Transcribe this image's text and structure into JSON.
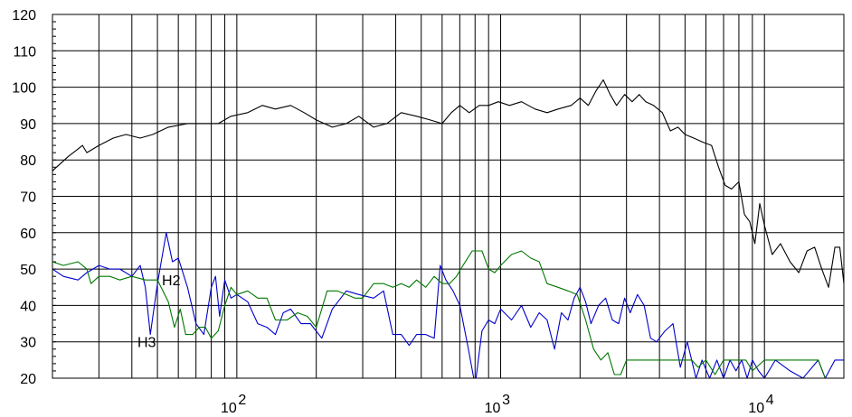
{
  "chart_data": {
    "type": "line",
    "title": "",
    "xlabel": "",
    "ylabel": "",
    "x_scale": "log",
    "xlim": [
      20,
      20000
    ],
    "ylim": [
      20,
      120
    ],
    "grid": true,
    "y_ticks": [
      120,
      110,
      100,
      90,
      80,
      70,
      60,
      50,
      40,
      30,
      20
    ],
    "y_tick_labels": [
      "120",
      "110",
      "100",
      "90",
      "80",
      "70",
      "60",
      "50",
      "40",
      "30",
      "20"
    ],
    "x_ticks": [
      {
        "base": "10",
        "exp": "2",
        "value": 100
      },
      {
        "base": "10",
        "exp": "3",
        "value": 1000
      },
      {
        "base": "10",
        "exp": "4",
        "value": 10000
      }
    ],
    "annotations": [
      {
        "text": "H2",
        "x": 52,
        "y": 47
      },
      {
        "text": "H3",
        "x": 42,
        "y": 30
      }
    ],
    "series": [
      {
        "color": "#000000",
        "points": [
          [
            20,
            77
          ],
          [
            23,
            81
          ],
          [
            25,
            83
          ],
          [
            26,
            84
          ],
          [
            27,
            82
          ],
          [
            30,
            84
          ],
          [
            34,
            86
          ],
          [
            38,
            87
          ],
          [
            43,
            86
          ],
          [
            48,
            87
          ],
          [
            55,
            89
          ],
          [
            65,
            90
          ],
          [
            75,
            90
          ],
          [
            85,
            90
          ],
          [
            95,
            92
          ],
          [
            110,
            93
          ],
          [
            125,
            95
          ],
          [
            140,
            94
          ],
          [
            160,
            95
          ],
          [
            180,
            93
          ],
          [
            200,
            91
          ],
          [
            230,
            89
          ],
          [
            260,
            90
          ],
          [
            290,
            92
          ],
          [
            330,
            89
          ],
          [
            370,
            90
          ],
          [
            420,
            93
          ],
          [
            480,
            92
          ],
          [
            540,
            91
          ],
          [
            600,
            90
          ],
          [
            650,
            93
          ],
          [
            700,
            95
          ],
          [
            760,
            93
          ],
          [
            830,
            95
          ],
          [
            900,
            95
          ],
          [
            980,
            96
          ],
          [
            1080,
            95
          ],
          [
            1200,
            96
          ],
          [
            1350,
            94
          ],
          [
            1500,
            93
          ],
          [
            1650,
            94
          ],
          [
            1850,
            95
          ],
          [
            2000,
            97
          ],
          [
            2150,
            95
          ],
          [
            2300,
            99
          ],
          [
            2450,
            102
          ],
          [
            2600,
            98
          ],
          [
            2750,
            95
          ],
          [
            2950,
            98
          ],
          [
            3150,
            96
          ],
          [
            3350,
            98
          ],
          [
            3550,
            96
          ],
          [
            3800,
            95
          ],
          [
            4100,
            93
          ],
          [
            4400,
            88
          ],
          [
            4700,
            89
          ],
          [
            5000,
            87
          ],
          [
            5400,
            86
          ],
          [
            5800,
            85
          ],
          [
            6300,
            84
          ],
          [
            6700,
            78
          ],
          [
            7100,
            73
          ],
          [
            7500,
            72
          ],
          [
            8000,
            74
          ],
          [
            8400,
            65
          ],
          [
            8800,
            63
          ],
          [
            9200,
            57
          ],
          [
            9600,
            68
          ],
          [
            10000,
            62
          ],
          [
            10700,
            54
          ],
          [
            11500,
            57
          ],
          [
            12500,
            52
          ],
          [
            13500,
            49
          ],
          [
            14500,
            55
          ],
          [
            15500,
            56
          ],
          [
            16500,
            50
          ],
          [
            17500,
            45
          ],
          [
            18500,
            56
          ],
          [
            19300,
            56
          ],
          [
            20000,
            46
          ]
        ]
      },
      {
        "color": "#0000cc",
        "points": [
          [
            20,
            50
          ],
          [
            22,
            48
          ],
          [
            25,
            47
          ],
          [
            27,
            49
          ],
          [
            30,
            51
          ],
          [
            33,
            50
          ],
          [
            36,
            50
          ],
          [
            40,
            48
          ],
          [
            43,
            51
          ],
          [
            45,
            45
          ],
          [
            47,
            32
          ],
          [
            50,
            46
          ],
          [
            54,
            60
          ],
          [
            57,
            52
          ],
          [
            60,
            53
          ],
          [
            65,
            45
          ],
          [
            70,
            35
          ],
          [
            75,
            32
          ],
          [
            80,
            45
          ],
          [
            83,
            48
          ],
          [
            86,
            37
          ],
          [
            90,
            47
          ],
          [
            95,
            42
          ],
          [
            100,
            43
          ],
          [
            110,
            41
          ],
          [
            120,
            35
          ],
          [
            130,
            34
          ],
          [
            140,
            32
          ],
          [
            150,
            38
          ],
          [
            160,
            39
          ],
          [
            175,
            35
          ],
          [
            190,
            35
          ],
          [
            210,
            31
          ],
          [
            230,
            39
          ],
          [
            260,
            44
          ],
          [
            290,
            43
          ],
          [
            330,
            42
          ],
          [
            360,
            44
          ],
          [
            390,
            32
          ],
          [
            420,
            32
          ],
          [
            450,
            29
          ],
          [
            480,
            32
          ],
          [
            520,
            32
          ],
          [
            560,
            31
          ],
          [
            590,
            51
          ],
          [
            620,
            47
          ],
          [
            660,
            44
          ],
          [
            700,
            40
          ],
          [
            750,
            29
          ],
          [
            800,
            18
          ],
          [
            850,
            33
          ],
          [
            900,
            36
          ],
          [
            950,
            35
          ],
          [
            1000,
            39
          ],
          [
            1100,
            36
          ],
          [
            1200,
            40
          ],
          [
            1300,
            34
          ],
          [
            1400,
            38
          ],
          [
            1500,
            36
          ],
          [
            1600,
            28
          ],
          [
            1700,
            38
          ],
          [
            1800,
            36
          ],
          [
            1900,
            42
          ],
          [
            2000,
            45
          ],
          [
            2100,
            41
          ],
          [
            2200,
            35
          ],
          [
            2350,
            40
          ],
          [
            2500,
            42
          ],
          [
            2650,
            36
          ],
          [
            2800,
            35
          ],
          [
            2950,
            42
          ],
          [
            3100,
            38
          ],
          [
            3300,
            43
          ],
          [
            3500,
            40
          ],
          [
            3700,
            31
          ],
          [
            3900,
            30
          ],
          [
            4200,
            33
          ],
          [
            4500,
            35
          ],
          [
            4800,
            23
          ],
          [
            5100,
            30
          ],
          [
            5500,
            20
          ],
          [
            5800,
            25
          ],
          [
            6200,
            20
          ],
          [
            6600,
            25
          ],
          [
            7000,
            20
          ],
          [
            7400,
            25
          ],
          [
            7800,
            22
          ],
          [
            8200,
            25
          ],
          [
            8600,
            20
          ],
          [
            9000,
            25
          ],
          [
            9500,
            22
          ],
          [
            10000,
            20
          ],
          [
            11000,
            25
          ],
          [
            12500,
            22
          ],
          [
            14000,
            20
          ],
          [
            16000,
            25
          ],
          [
            17000,
            20
          ],
          [
            18500,
            25
          ],
          [
            20000,
            25
          ]
        ]
      },
      {
        "color": "#007700",
        "points": [
          [
            20,
            52
          ],
          [
            22,
            51
          ],
          [
            25,
            52
          ],
          [
            27,
            50
          ],
          [
            28,
            46
          ],
          [
            30,
            48
          ],
          [
            33,
            48
          ],
          [
            36,
            47
          ],
          [
            40,
            48
          ],
          [
            45,
            47
          ],
          [
            50,
            47
          ],
          [
            55,
            41
          ],
          [
            58,
            34
          ],
          [
            61,
            39
          ],
          [
            64,
            32
          ],
          [
            68,
            32
          ],
          [
            72,
            34
          ],
          [
            76,
            34
          ],
          [
            80,
            31
          ],
          [
            85,
            33
          ],
          [
            90,
            40
          ],
          [
            95,
            45
          ],
          [
            100,
            43
          ],
          [
            110,
            44
          ],
          [
            120,
            42
          ],
          [
            130,
            42
          ],
          [
            140,
            36
          ],
          [
            155,
            36
          ],
          [
            170,
            38
          ],
          [
            185,
            37
          ],
          [
            200,
            34
          ],
          [
            220,
            44
          ],
          [
            240,
            44
          ],
          [
            260,
            43
          ],
          [
            280,
            42
          ],
          [
            300,
            42
          ],
          [
            330,
            46
          ],
          [
            360,
            46
          ],
          [
            390,
            45
          ],
          [
            420,
            46
          ],
          [
            450,
            45
          ],
          [
            480,
            47
          ],
          [
            520,
            45
          ],
          [
            560,
            48
          ],
          [
            600,
            46
          ],
          [
            640,
            46
          ],
          [
            680,
            48
          ],
          [
            720,
            51
          ],
          [
            780,
            55
          ],
          [
            850,
            55
          ],
          [
            900,
            50
          ],
          [
            950,
            49
          ],
          [
            1000,
            51
          ],
          [
            1100,
            54
          ],
          [
            1200,
            55
          ],
          [
            1300,
            53
          ],
          [
            1400,
            52
          ],
          [
            1500,
            46
          ],
          [
            1650,
            45
          ],
          [
            1800,
            44
          ],
          [
            1950,
            43
          ],
          [
            2100,
            36
          ],
          [
            2250,
            28
          ],
          [
            2400,
            25
          ],
          [
            2550,
            27
          ],
          [
            2700,
            21
          ],
          [
            2850,
            21
          ],
          [
            3000,
            25
          ],
          [
            3200,
            25
          ],
          [
            3500,
            25
          ],
          [
            3800,
            25
          ],
          [
            4100,
            25
          ],
          [
            4400,
            25
          ],
          [
            4700,
            25
          ],
          [
            5000,
            25
          ],
          [
            5300,
            25
          ],
          [
            5600,
            23
          ],
          [
            6000,
            25
          ],
          [
            6500,
            21
          ],
          [
            7000,
            25
          ],
          [
            7500,
            25
          ],
          [
            8000,
            25
          ],
          [
            8500,
            25
          ],
          [
            9000,
            22
          ],
          [
            10000,
            25
          ],
          [
            12000,
            25
          ],
          [
            14000,
            25
          ],
          [
            16000,
            25
          ],
          [
            17000,
            20
          ],
          [
            20000,
            20
          ]
        ]
      }
    ]
  }
}
